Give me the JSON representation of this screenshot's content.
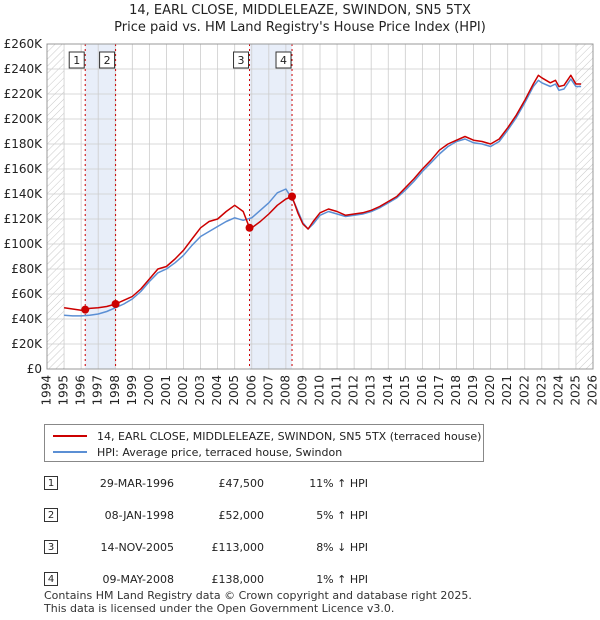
{
  "title_line1": "14, EARL CLOSE, MIDDLELEAZE, SWINDON, SN5 5TX",
  "title_line2": "Price paid vs. HM Land Registry's House Price Index (HPI)",
  "colors": {
    "property": "#cc0000",
    "hpi": "#5b8fd4",
    "shade": "#e8eef9",
    "grid": "#cccccc"
  },
  "chart_data": {
    "type": "line",
    "xlim": [
      1994,
      2026
    ],
    "ylim": [
      0,
      260000
    ],
    "y_ticks": [
      0,
      20000,
      40000,
      60000,
      80000,
      100000,
      120000,
      140000,
      160000,
      180000,
      200000,
      220000,
      240000,
      260000
    ],
    "y_tick_labels": [
      "£0",
      "£20K",
      "£40K",
      "£60K",
      "£80K",
      "£100K",
      "£120K",
      "£140K",
      "£160K",
      "£180K",
      "£200K",
      "£220K",
      "£240K",
      "£260K"
    ],
    "x_ticks": [
      1994,
      1995,
      1996,
      1997,
      1998,
      1999,
      2000,
      2001,
      2002,
      2003,
      2004,
      2005,
      2006,
      2007,
      2008,
      2009,
      2010,
      2011,
      2012,
      2013,
      2014,
      2015,
      2016,
      2017,
      2018,
      2019,
      2020,
      2021,
      2022,
      2023,
      2024,
      2025,
      2026
    ],
    "shaded_ranges": [
      [
        1996.24,
        1998.02
      ],
      [
        2005.87,
        2008.36
      ]
    ],
    "hatched_ranges": [
      [
        1994,
        1995.0
      ],
      [
        2025.0,
        2026
      ]
    ],
    "markers": [
      {
        "label": "1",
        "x": 1996.24,
        "y": 47500
      },
      {
        "label": "2",
        "x": 1998.02,
        "y": 52000
      },
      {
        "label": "3",
        "x": 2005.87,
        "y": 113000
      },
      {
        "label": "4",
        "x": 2008.36,
        "y": 138000
      }
    ],
    "series": [
      {
        "name": "14, EARL CLOSE, MIDDLELEAZE, SWINDON, SN5 5TX (terraced house)",
        "x": [
          1995.0,
          1995.5,
          1996.0,
          1996.24,
          1996.5,
          1997.0,
          1997.5,
          1998.02,
          1998.5,
          1999.0,
          1999.5,
          2000.0,
          2000.5,
          2001.0,
          2001.5,
          2002.0,
          2002.5,
          2003.0,
          2003.5,
          2004.0,
          2004.5,
          2005.0,
          2005.5,
          2005.87,
          2006.0,
          2006.5,
          2007.0,
          2007.5,
          2008.0,
          2008.36,
          2008.7,
          2009.0,
          2009.3,
          2009.6,
          2010.0,
          2010.5,
          2011.0,
          2011.5,
          2012.0,
          2012.5,
          2013.0,
          2013.5,
          2014.0,
          2014.5,
          2015.0,
          2015.5,
          2016.0,
          2016.5,
          2017.0,
          2017.5,
          2018.0,
          2018.5,
          2019.0,
          2019.5,
          2020.0,
          2020.5,
          2021.0,
          2021.5,
          2022.0,
          2022.5,
          2022.8,
          2023.0,
          2023.5,
          2023.8,
          2024.0,
          2024.3,
          2024.7,
          2025.0,
          2025.3
        ],
        "values": [
          49000,
          48000,
          47000,
          47500,
          48500,
          49000,
          50000,
          52000,
          55000,
          58000,
          64000,
          72000,
          80000,
          82000,
          88000,
          95000,
          104000,
          113000,
          118000,
          120000,
          126000,
          131000,
          126000,
          113000,
          113000,
          118000,
          124000,
          131000,
          136000,
          138000,
          125000,
          116000,
          112000,
          118000,
          125000,
          128000,
          126000,
          123000,
          124000,
          125000,
          127000,
          130000,
          134000,
          138000,
          145000,
          152000,
          160000,
          167000,
          175000,
          180000,
          183000,
          186000,
          183000,
          182000,
          180000,
          184000,
          193000,
          203000,
          215000,
          228000,
          235000,
          233000,
          229000,
          231000,
          226000,
          227000,
          235000,
          228000,
          228000
        ]
      },
      {
        "name": "HPI: Average price, terraced house, Swindon",
        "x": [
          1995.0,
          1995.5,
          1996.0,
          1996.5,
          1997.0,
          1997.5,
          1998.0,
          1998.5,
          1999.0,
          1999.5,
          2000.0,
          2000.5,
          2001.0,
          2001.5,
          2002.0,
          2002.5,
          2003.0,
          2003.5,
          2004.0,
          2004.5,
          2005.0,
          2005.5,
          2006.0,
          2006.5,
          2007.0,
          2007.5,
          2008.0,
          2008.5,
          2009.0,
          2009.3,
          2009.6,
          2010.0,
          2010.5,
          2011.0,
          2011.5,
          2012.0,
          2012.5,
          2013.0,
          2013.5,
          2014.0,
          2014.5,
          2015.0,
          2015.5,
          2016.0,
          2016.5,
          2017.0,
          2017.5,
          2018.0,
          2018.5,
          2019.0,
          2019.5,
          2020.0,
          2020.5,
          2021.0,
          2021.5,
          2022.0,
          2022.5,
          2022.8,
          2023.0,
          2023.5,
          2023.8,
          2024.0,
          2024.3,
          2024.7,
          2025.0,
          2025.3
        ],
        "values": [
          43000,
          42500,
          42500,
          43000,
          44000,
          46000,
          49000,
          52000,
          56000,
          62000,
          70000,
          77000,
          80000,
          85000,
          91000,
          99000,
          106000,
          110000,
          114000,
          118000,
          121000,
          119000,
          121000,
          127000,
          133000,
          141000,
          144000,
          133000,
          117000,
          112000,
          116000,
          123000,
          126000,
          124000,
          122000,
          123000,
          124000,
          126000,
          129000,
          133000,
          137000,
          143000,
          150000,
          158000,
          165000,
          172000,
          178000,
          182000,
          184000,
          181000,
          180000,
          178000,
          182000,
          191000,
          201000,
          213000,
          226000,
          231000,
          229000,
          226000,
          228000,
          223000,
          224000,
          232000,
          226000,
          226000
        ]
      }
    ]
  },
  "legend": {
    "property_label": "14, EARL CLOSE, MIDDLELEAZE, SWINDON, SN5 5TX (terraced house)",
    "hpi_label": "HPI: Average price, terraced house, Swindon"
  },
  "transactions": [
    {
      "num": "1",
      "date": "29-MAR-1996",
      "price": "£47,500",
      "hpi": "11% ↑ HPI"
    },
    {
      "num": "2",
      "date": "08-JAN-1998",
      "price": "£52,000",
      "hpi": "5% ↑ HPI"
    },
    {
      "num": "3",
      "date": "14-NOV-2005",
      "price": "£113,000",
      "hpi": "8% ↓ HPI"
    },
    {
      "num": "4",
      "date": "09-MAY-2008",
      "price": "£138,000",
      "hpi": "1% ↑ HPI"
    }
  ],
  "footer_line1": "Contains HM Land Registry data © Crown copyright and database right 2025.",
  "footer_line2": "This data is licensed under the Open Government Licence v3.0."
}
